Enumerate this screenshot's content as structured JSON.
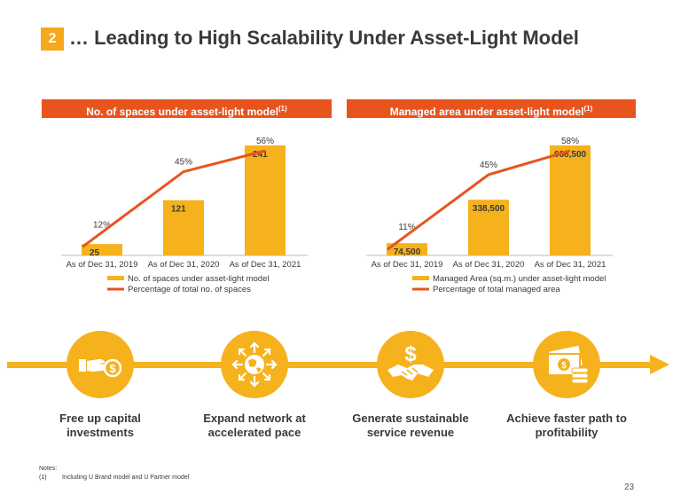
{
  "header": {
    "badge": "2",
    "title": "… Leading to High Scalability Under Asset-Light Model"
  },
  "colors": {
    "accent": "#e8541e",
    "bar": "#f5b21c",
    "text": "#3a3a3a"
  },
  "chart_data": [
    {
      "type": "bar",
      "title": "No. of spaces under asset-light model",
      "title_sup": "(1)",
      "categories": [
        "As of Dec 31, 2019",
        "As of Dec 31, 2020",
        "As of Dec 31, 2021"
      ],
      "series": [
        {
          "name": "No. of spaces under asset-light model",
          "kind": "bar",
          "values": [
            25,
            121,
            241
          ],
          "labels": [
            "25",
            "121",
            "241"
          ]
        },
        {
          "name": "Percentage of total no. of spaces",
          "kind": "line",
          "values": [
            12,
            45,
            56
          ],
          "labels": [
            "12%",
            "45%",
            "56%"
          ]
        }
      ],
      "ylim": [
        0,
        241
      ],
      "line_ylim": [
        0,
        56
      ]
    },
    {
      "type": "bar",
      "title": "Managed area under asset-light model",
      "title_sup": "(1)",
      "categories": [
        "As of Dec 31, 2019",
        "As of Dec 31, 2020",
        "As of Dec 31, 2021"
      ],
      "series": [
        {
          "name": "Managed Area (sq.m.) under asset-light model",
          "kind": "bar",
          "values": [
            74500,
            338500,
            668500
          ],
          "labels": [
            "74,500",
            "338,500",
            "668,500"
          ]
        },
        {
          "name": "Percentage of total managed area",
          "kind": "line",
          "values": [
            11,
            45,
            58
          ],
          "labels": [
            "11%",
            "45%",
            "58%"
          ]
        }
      ],
      "ylim": [
        0,
        668500
      ],
      "line_ylim": [
        0,
        58
      ]
    }
  ],
  "benefits": [
    {
      "label": "Free up capital investments",
      "icon": "hand-money-icon"
    },
    {
      "label": "Expand network at accelerated pace",
      "icon": "globe-expand-icon"
    },
    {
      "label": "Generate sustainable service revenue",
      "icon": "handshake-dollar-icon"
    },
    {
      "label": "Achieve faster path to profitability",
      "icon": "money-stack-icon"
    }
  ],
  "notes": {
    "heading": "Notes:",
    "num": "(1)",
    "text": "Including U Brand model and U Partner model"
  },
  "page_number": "23"
}
